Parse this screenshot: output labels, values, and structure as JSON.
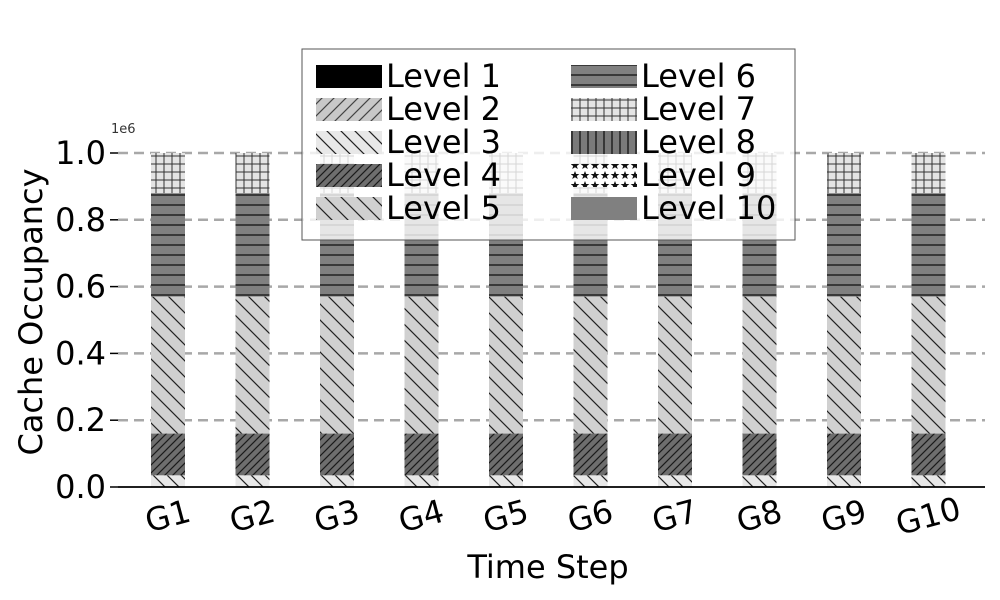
{
  "chart_data": {
    "type": "bar",
    "stacked": true,
    "title": "",
    "xlabel": "Time Step",
    "ylabel": "Cache Occupancy",
    "y_offset_label": "1e6",
    "y_multiplier": 1000000,
    "ylim": [
      0,
      1000000
    ],
    "yticks": [
      0,
      200000,
      400000,
      600000,
      800000,
      1000000
    ],
    "ytick_labels": [
      "0.0",
      "0.2",
      "0.4",
      "0.6",
      "0.8",
      "1.0"
    ],
    "grid": "horizontal-dashed",
    "legend_position": "top-center",
    "categories": [
      "G1",
      "G2",
      "G3",
      "G4",
      "G5",
      "G6",
      "G7",
      "G8",
      "G9",
      "G10"
    ],
    "series": [
      {
        "name": "Level 1",
        "values": [
          0,
          0,
          0,
          0,
          0,
          0,
          0,
          0,
          0,
          0
        ],
        "pattern": "solid-black"
      },
      {
        "name": "Level 2",
        "values": [
          0,
          0,
          0,
          0,
          0,
          0,
          0,
          0,
          0,
          0
        ],
        "pattern": "forward-diagonal"
      },
      {
        "name": "Level 3",
        "values": [
          35000,
          35000,
          35000,
          35000,
          35000,
          35000,
          35000,
          35000,
          35000,
          35000
        ],
        "pattern": "back-diagonal-light"
      },
      {
        "name": "Level 4",
        "values": [
          125000,
          125000,
          125000,
          125000,
          125000,
          125000,
          125000,
          125000,
          125000,
          125000
        ],
        "pattern": "dense-forward-diagonal"
      },
      {
        "name": "Level 5",
        "values": [
          410000,
          410000,
          410000,
          410000,
          410000,
          410000,
          410000,
          410000,
          410000,
          410000
        ],
        "pattern": "back-diagonal"
      },
      {
        "name": "Level 6",
        "values": [
          310000,
          310000,
          310000,
          310000,
          310000,
          310000,
          310000,
          310000,
          310000,
          310000
        ],
        "pattern": "horizontal"
      },
      {
        "name": "Level 7",
        "values": [
          120000,
          120000,
          120000,
          120000,
          120000,
          120000,
          120000,
          120000,
          120000,
          120000
        ],
        "pattern": "grid"
      },
      {
        "name": "Level 8",
        "values": [
          0,
          0,
          0,
          0,
          0,
          0,
          0,
          0,
          0,
          0
        ],
        "pattern": "vertical"
      },
      {
        "name": "Level 9",
        "values": [
          0,
          0,
          0,
          0,
          0,
          0,
          0,
          0,
          0,
          0
        ],
        "pattern": "stars"
      },
      {
        "name": "Level 10",
        "values": [
          0,
          0,
          0,
          0,
          0,
          0,
          0,
          0,
          0,
          0
        ],
        "pattern": "solid-gray"
      }
    ]
  }
}
